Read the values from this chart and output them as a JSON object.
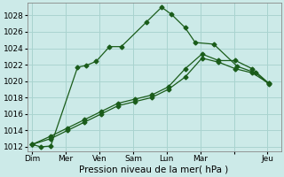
{
  "background_color": "#cceae8",
  "grid_color": "#aad4d0",
  "line_color": "#1a5c1a",
  "marker": "D",
  "marker_size": 2.5,
  "xlabel": "Pression niveau de la mer( hPa )",
  "ylim": [
    1011.5,
    1029.5
  ],
  "yticks": [
    1012,
    1014,
    1016,
    1018,
    1020,
    1022,
    1024,
    1026,
    1028
  ],
  "xtick_labels": [
    "Dim",
    "Mer",
    "Ven",
    "Sam",
    "Lun",
    "Mar",
    "",
    "Jeu"
  ],
  "xtick_positions": [
    0,
    1,
    2,
    3,
    4,
    5,
    6,
    7
  ],
  "xlim": [
    -0.15,
    7.4
  ],
  "line1_x": [
    0.0,
    0.25,
    0.55,
    1.35,
    1.6,
    1.9,
    2.3,
    2.65,
    3.4,
    3.85,
    4.15,
    4.55,
    4.85,
    5.4,
    6.1,
    6.65,
    7.05
  ],
  "line1_y": [
    1012.3,
    1012.0,
    1012.1,
    1021.7,
    1021.9,
    1022.4,
    1024.2,
    1024.2,
    1027.2,
    1029.0,
    1028.1,
    1026.5,
    1024.7,
    1024.5,
    1021.8,
    1021.0,
    1019.6
  ],
  "line2_x": [
    0.0,
    0.55,
    1.05,
    1.55,
    2.05,
    2.55,
    3.05,
    3.55,
    4.05,
    4.55,
    5.05,
    5.55,
    6.05,
    6.55,
    7.05
  ],
  "line2_y": [
    1012.3,
    1013.3,
    1014.3,
    1015.3,
    1016.3,
    1017.3,
    1017.8,
    1018.3,
    1019.3,
    1021.5,
    1023.3,
    1022.5,
    1022.5,
    1021.5,
    1019.7
  ],
  "line3_x": [
    0.0,
    0.55,
    1.05,
    1.55,
    2.05,
    2.55,
    3.05,
    3.55,
    4.05,
    4.55,
    5.05,
    5.55,
    6.05,
    6.55,
    7.05
  ],
  "line3_y": [
    1012.3,
    1013.0,
    1014.0,
    1015.0,
    1016.0,
    1017.0,
    1017.5,
    1018.0,
    1019.0,
    1020.5,
    1022.8,
    1022.3,
    1021.5,
    1021.0,
    1019.7
  ]
}
